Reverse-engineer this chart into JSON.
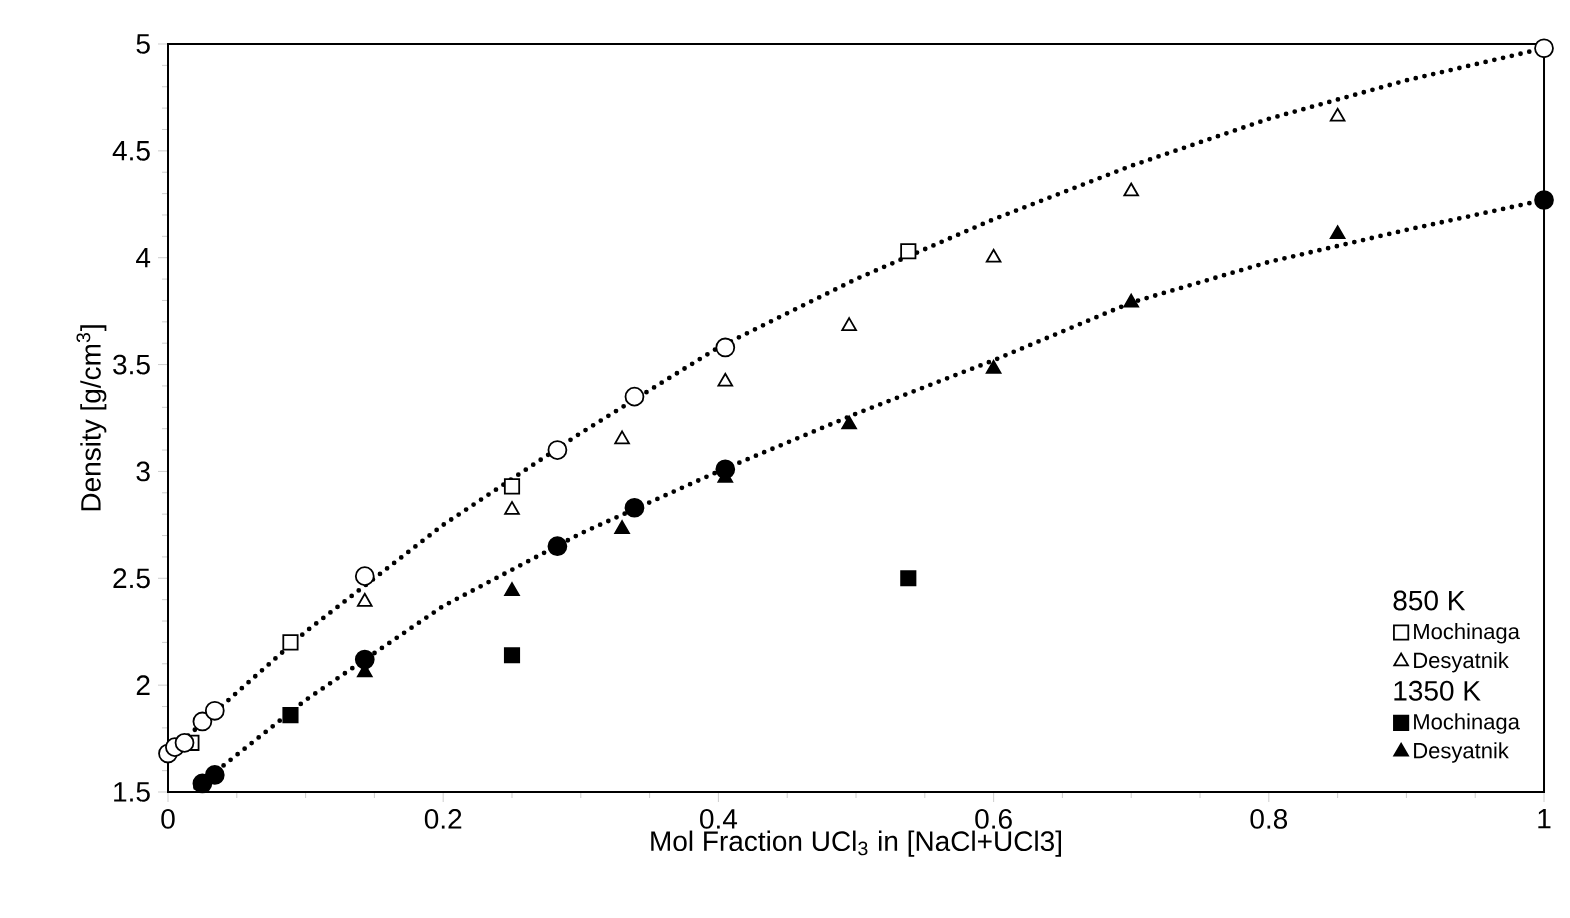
{
  "chart_data": {
    "type": "scatter",
    "xlabel": "Mol Fraction UCl$_{3}$ in [NaCl+UCl3]",
    "ylabel": "Density [g/cm$^{3}$]",
    "xlim": [
      0,
      1
    ],
    "ylim": [
      1.5,
      5
    ],
    "xticks": [
      0,
      0.2,
      0.4,
      0.6,
      0.8,
      1
    ],
    "yticks": [
      1.5,
      2,
      2.5,
      3,
      3.5,
      4,
      4.5,
      5
    ],
    "legend": "bottom right",
    "grid": false,
    "annotations": [
      "850 K",
      "1350 K"
    ],
    "series": [
      {
        "name": "Mochinaga",
        "color": "#ffffff",
        "marker": "square",
        "x": [
          0.017,
          0.089,
          0.25,
          0.538
        ],
        "values": [
          1.73,
          2.2,
          2.93,
          4.03
        ]
      },
      {
        "name": "Desyatnik",
        "color": "#ffffff",
        "marker": "triangle",
        "x": [
          0.143,
          0.25,
          0.33,
          0.405,
          0.495,
          0.6,
          0.7,
          0.85
        ],
        "values": [
          2.39,
          2.82,
          3.15,
          3.42,
          3.68,
          4.0,
          4.31,
          4.66
        ]
      },
      {
        "name": "Mochinaga",
        "color": "#000000",
        "marker": "square",
        "x": [
          0.089,
          0.25,
          0.538
        ],
        "values": [
          1.86,
          2.14,
          2.5
        ]
      },
      {
        "name": "Desyatnik",
        "color": "#000000",
        "marker": "triangle",
        "x": [
          0.143,
          0.25,
          0.33,
          0.405,
          0.495,
          0.6,
          0.7,
          0.85
        ],
        "values": [
          2.06,
          2.44,
          2.73,
          2.97,
          3.22,
          3.48,
          3.79,
          4.11
        ]
      },
      {
        "color": "#ffffff",
        "marker": "circle",
        "x": [
          0.0,
          0.005,
          0.012,
          0.025,
          0.034,
          0.143,
          0.283,
          0.339,
          0.405,
          1.0
        ],
        "values": [
          1.68,
          1.71,
          1.73,
          1.83,
          1.88,
          2.51,
          3.1,
          3.35,
          3.58,
          4.98
        ]
      },
      {
        "color": "#000000",
        "marker": "circle",
        "x": [
          0.025,
          0.034,
          0.143,
          0.283,
          0.339,
          0.405,
          1.0
        ],
        "values": [
          1.54,
          1.58,
          2.12,
          2.65,
          2.83,
          3.01,
          4.27
        ]
      },
      {
        "type": "line",
        "color": "#000000",
        "line_style": "dotted",
        "marker": "none",
        "x": [
          0,
          0.1,
          0.2,
          0.3,
          0.4,
          0.5,
          0.6,
          0.7,
          0.8,
          0.9,
          1.0
        ],
        "values": [
          1.68,
          2.25,
          2.75,
          3.18,
          3.58,
          3.9,
          4.18,
          4.43,
          4.65,
          4.83,
          4.98
        ]
      },
      {
        "type": "line",
        "color": "#000000",
        "line_style": "dotted",
        "marker": "none",
        "x": [
          0.02,
          0.1,
          0.2,
          0.3,
          0.4,
          0.5,
          0.6,
          0.7,
          0.8,
          0.9,
          1.0
        ],
        "values": [
          1.52,
          1.93,
          2.37,
          2.71,
          3.0,
          3.27,
          3.52,
          3.79,
          3.98,
          4.13,
          4.27
        ]
      }
    ]
  }
}
